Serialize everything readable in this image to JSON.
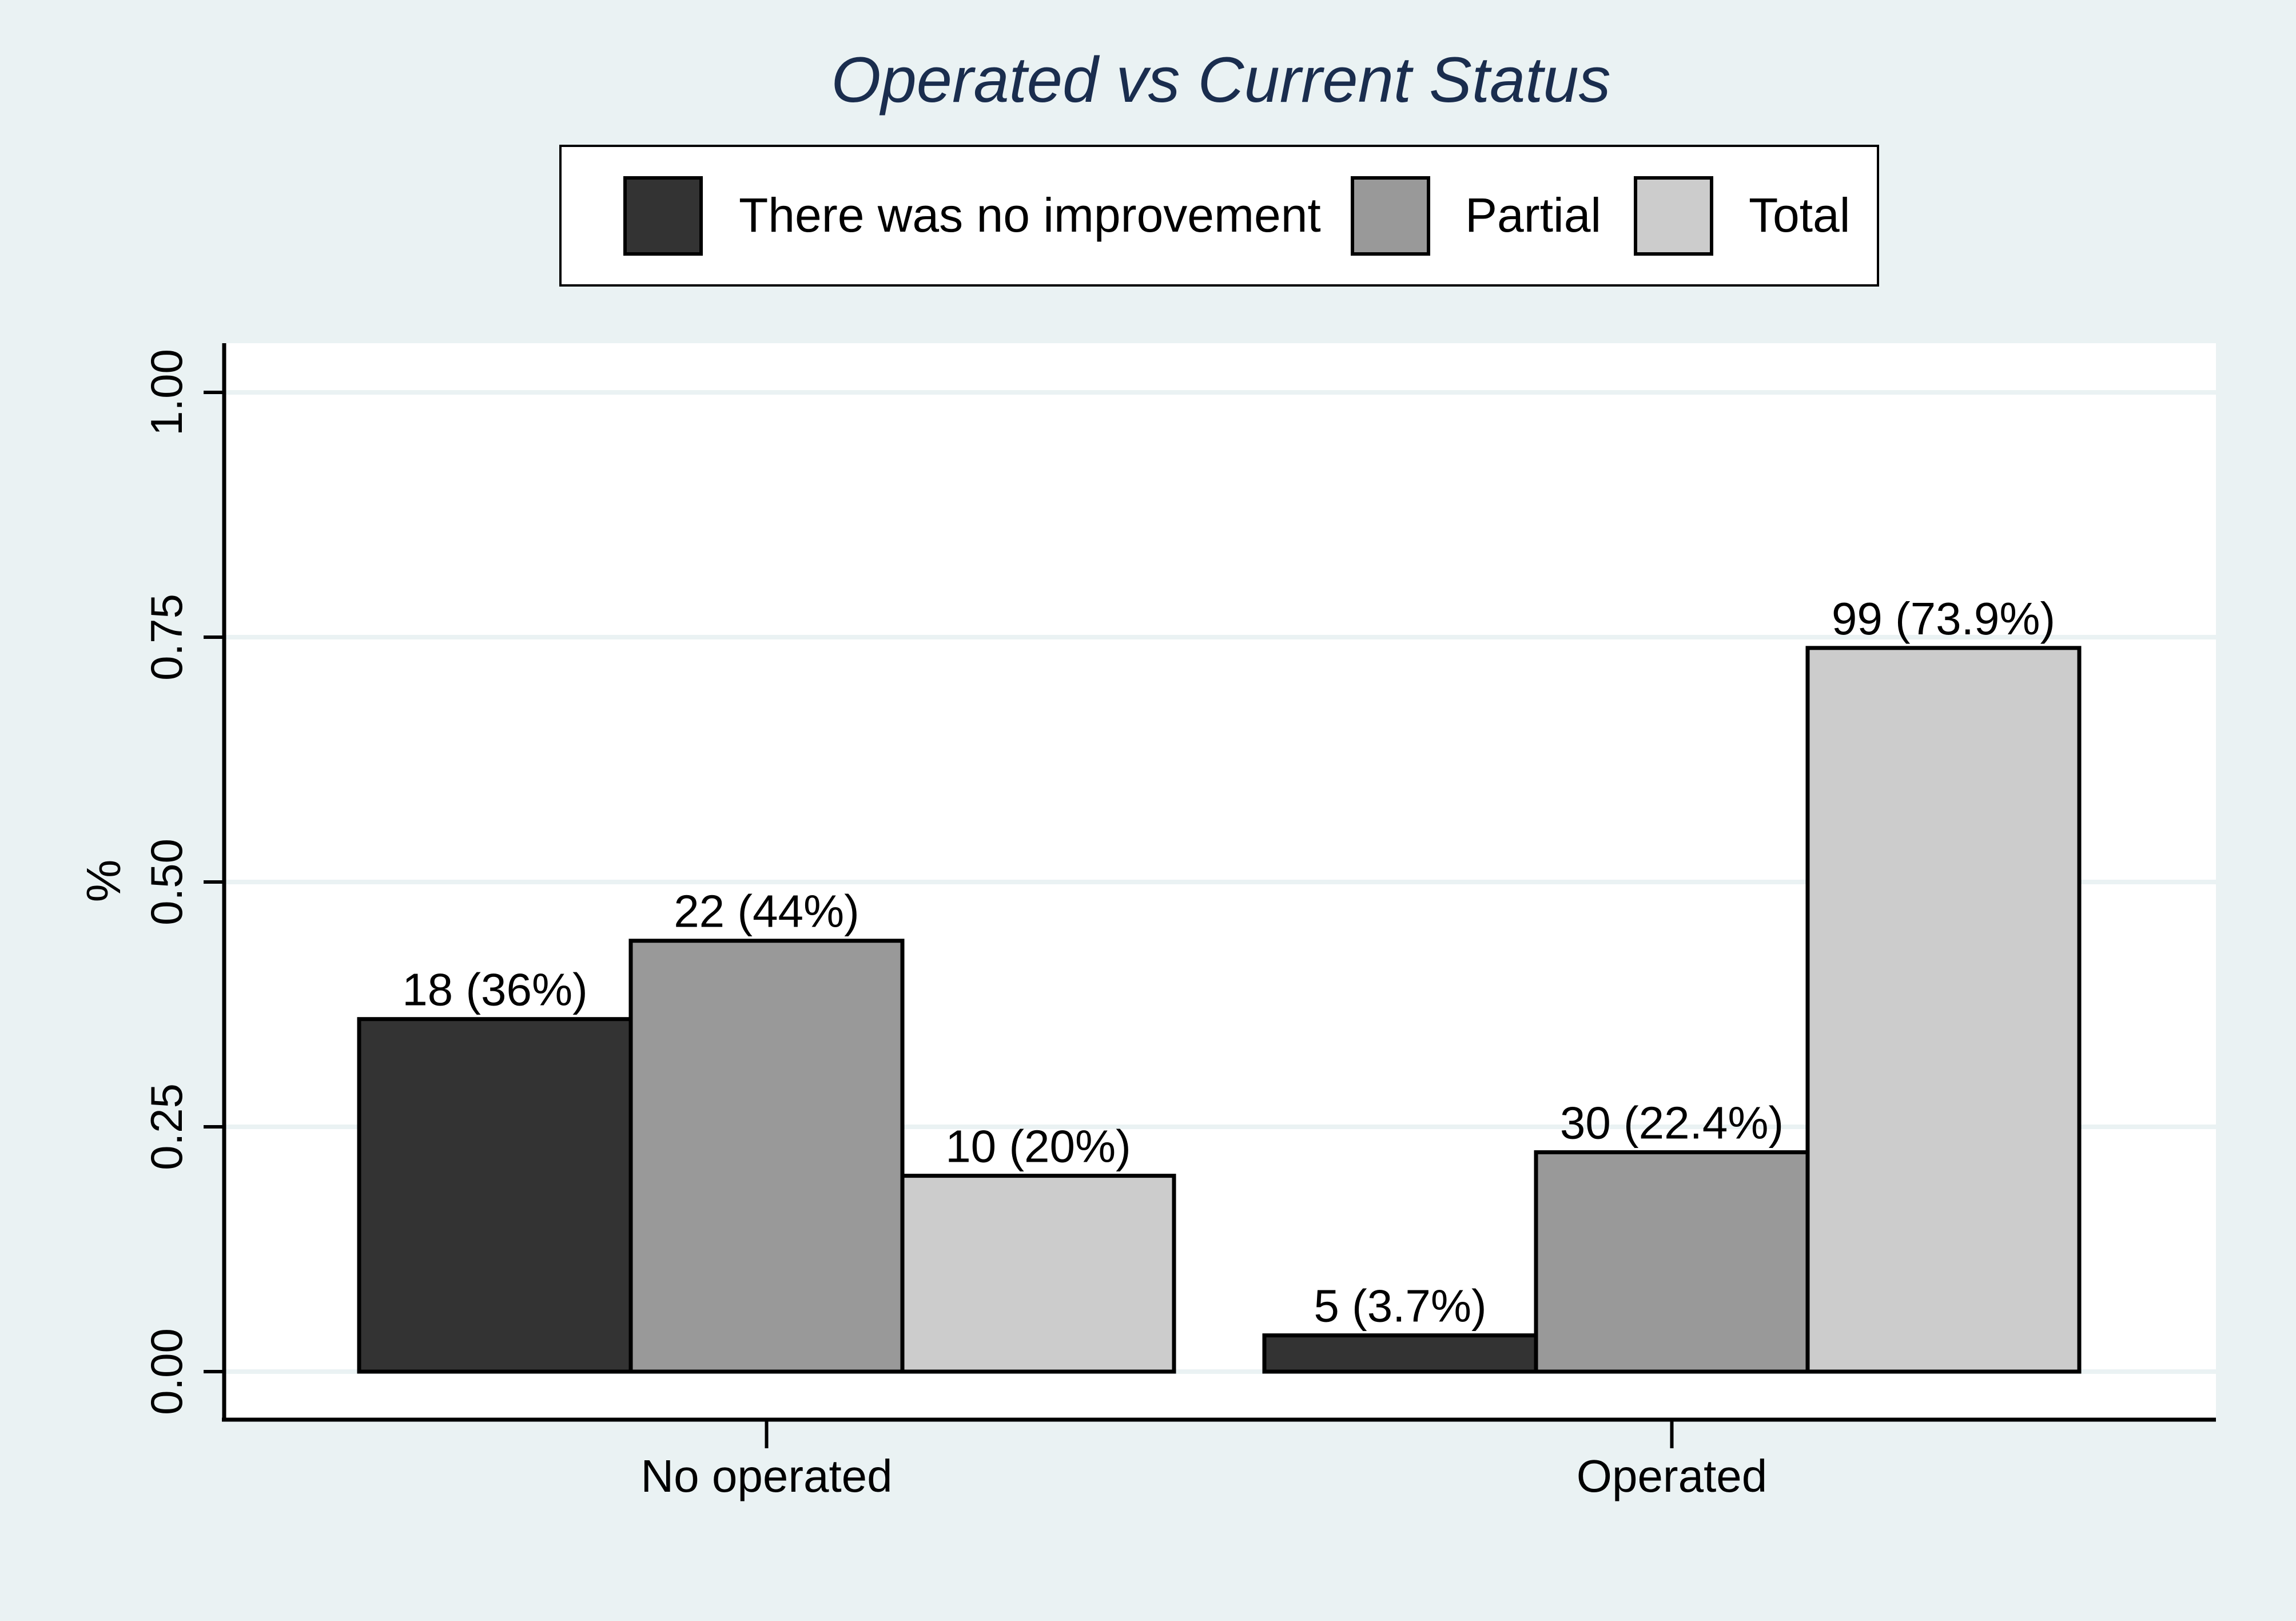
{
  "chart_data": {
    "type": "bar",
    "title": "Operated vs Current Status",
    "xlabel": "",
    "ylabel": "%",
    "ylim": [
      0,
      1.05
    ],
    "yticks": [
      0,
      0.25,
      0.5,
      0.75,
      1.0
    ],
    "ytick_labels": [
      "0.00",
      "0.25",
      "0.50",
      "0.75",
      "1.00"
    ],
    "grid": true,
    "legend_position": "top",
    "categories": [
      "No operated",
      "Operated"
    ],
    "series": [
      {
        "name": "There was no improvement",
        "color": "#333333",
        "values": [
          0.36,
          0.037
        ],
        "labels": [
          "18 (36%)",
          "5 (3.7%)"
        ]
      },
      {
        "name": "Partial",
        "color": "#999999",
        "values": [
          0.44,
          0.224
        ],
        "labels": [
          "22 (44%)",
          "30 (22.4%)"
        ]
      },
      {
        "name": "Total",
        "color": "#cccccc",
        "values": [
          0.2,
          0.739
        ],
        "labels": [
          "10 (20%)",
          "99 (73.9%)"
        ]
      }
    ],
    "colors": {
      "background": "#eaf2f3",
      "plot_background": "#ffffff",
      "gridline": "#eaf2f3",
      "title": "#1a2d4e",
      "bar_outline": "#000000"
    }
  }
}
